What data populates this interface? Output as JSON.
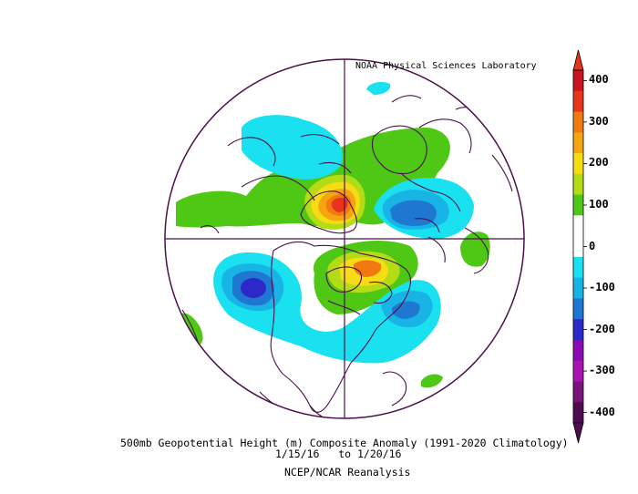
{
  "credit": "NOAA Physical Sciences Laboratory",
  "caption": {
    "line1": "500mb Geopotential Height (m) Composite Anomaly (1991-2020 Climatology)",
    "line2": "1/15/16   to 1/20/16",
    "line3": "NCEP/NCAR Reanalysis"
  },
  "colorbar": {
    "levels": [
      {
        "label": "400",
        "color": "#c8141e"
      },
      {
        "label": "",
        "color": "#e8341a"
      },
      {
        "label": "300",
        "color": "#f07a10"
      },
      {
        "label": "",
        "color": "#f5a510"
      },
      {
        "label": "200",
        "color": "#f5dc14"
      },
      {
        "label": "",
        "color": "#b4dc14"
      },
      {
        "label": "100",
        "color": "#4ec814"
      },
      {
        "label": "",
        "color": "#ffffff"
      },
      {
        "label": "0",
        "color": "#ffffff"
      },
      {
        "label": "",
        "color": "#19e1f0"
      },
      {
        "label": "-100",
        "color": "#19b4e6"
      },
      {
        "label": "",
        "color": "#1e78d2"
      },
      {
        "label": "-200",
        "color": "#2d28c8"
      },
      {
        "label": "",
        "color": "#8c0ab4"
      },
      {
        "label": "-300",
        "color": "#aa14b4"
      },
      {
        "label": "",
        "color": "#78147a"
      },
      {
        "label": "-400",
        "color": "#500a50"
      }
    ],
    "top_color": "#e8341a",
    "bottom_color": "#500a50"
  },
  "colors": {
    "coast": "#4a0f4a",
    "green": "#4ec814",
    "cyan": "#19e1f0",
    "lightblue": "#19b4e6",
    "blue": "#1e78d2",
    "indigo": "#2d28c8",
    "yellow": "#f5dc14",
    "orange": "#f07a10",
    "red": "#e8341a",
    "darkred": "#c8141e"
  }
}
